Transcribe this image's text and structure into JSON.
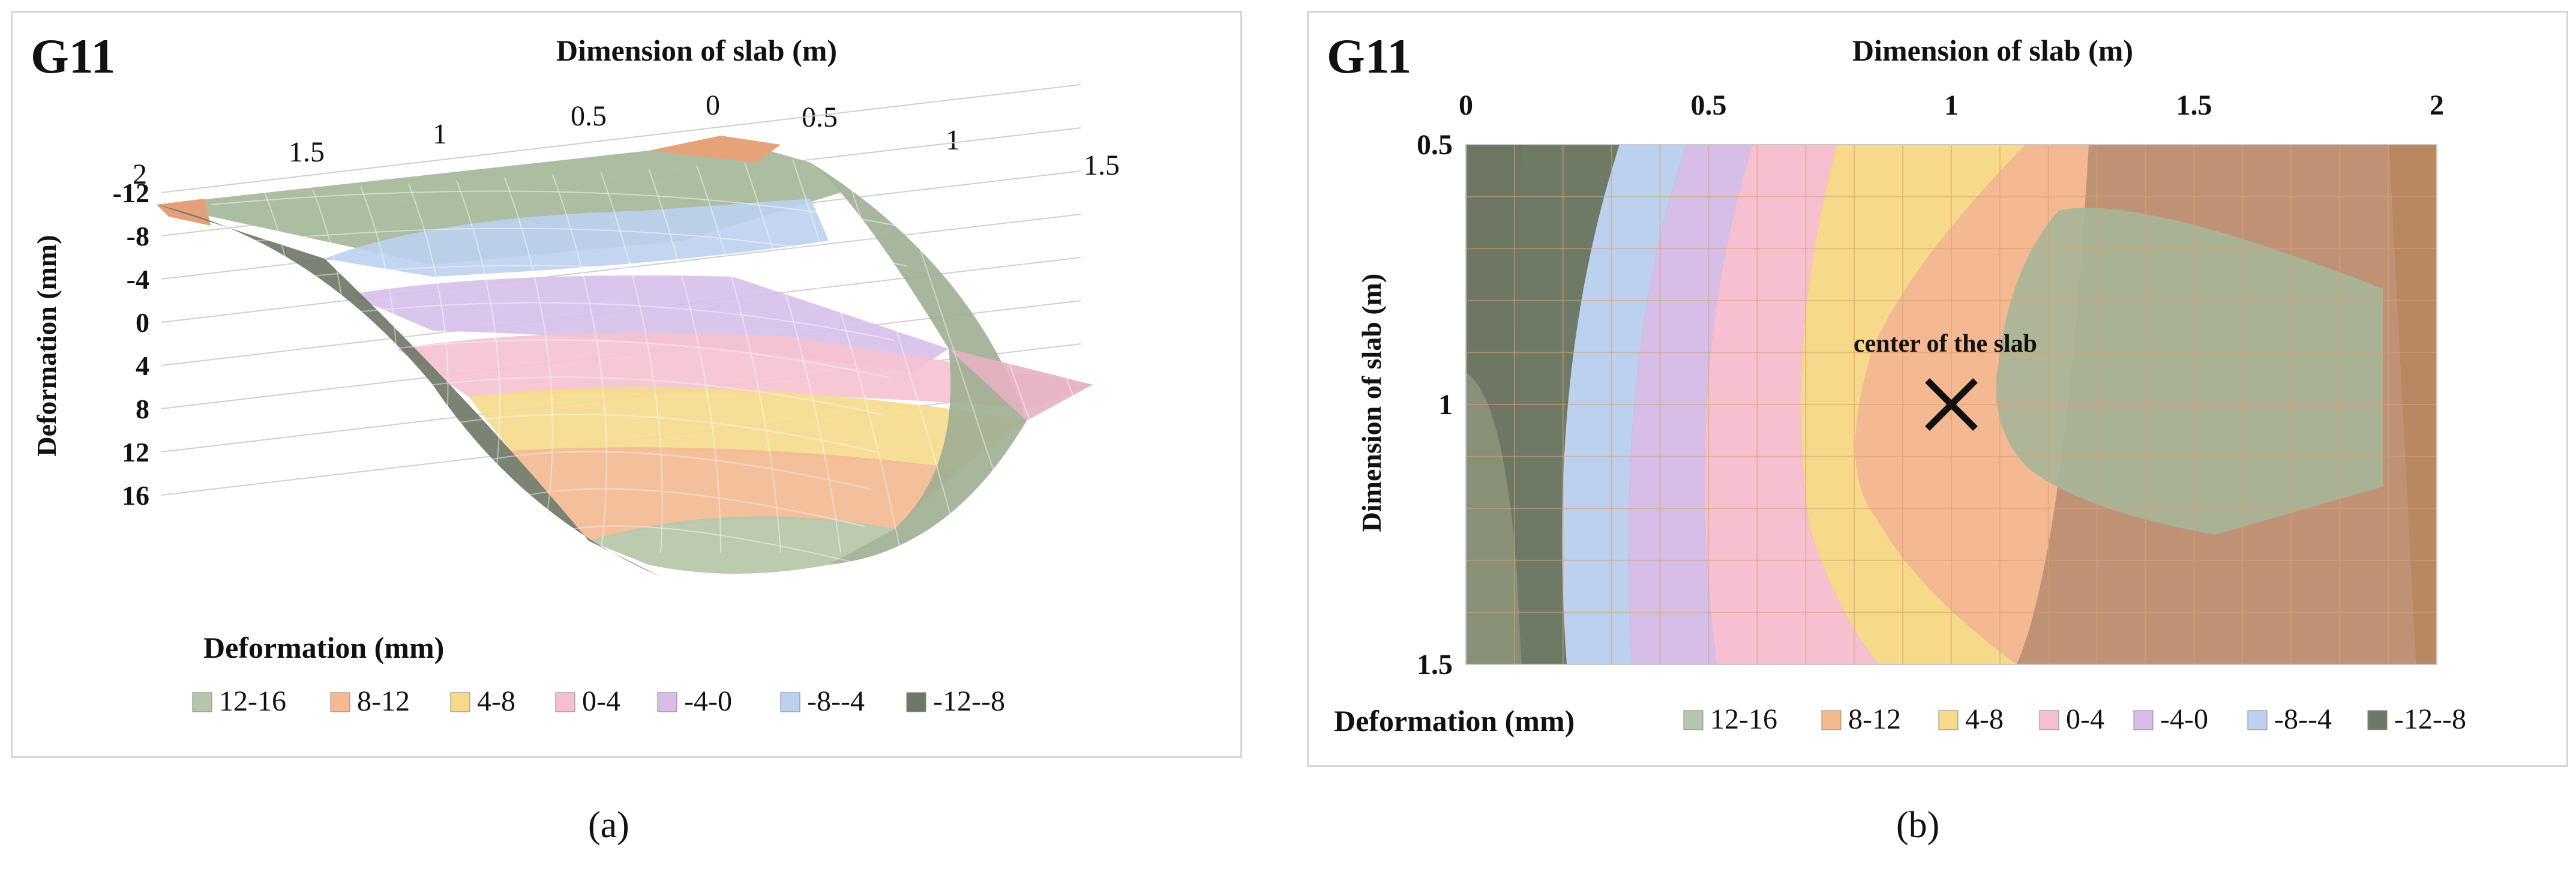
{
  "legend_colors": {
    "12-16": "#b7c5ac",
    "8-12": "#f4b98f",
    "4-8": "#f7d98a",
    "0-4": "#f5bfcf",
    "-4-0": "#d7bde8",
    "-8--4": "#bdd0ef",
    "-12--8": "#6f7766",
    "mesh": "#cf7a3a"
  },
  "chart_data": [
    {
      "id": "a",
      "type": "surface",
      "panel_label": "G11",
      "title": "",
      "x_axis_label": "Dimension of slab (m)",
      "x_ticks_left": [
        "2",
        "1.5",
        "1",
        "0.5",
        "0"
      ],
      "x_ticks_right": [
        "0.5",
        "1",
        "1.5"
      ],
      "z_axis_label": "Deformation (mm)",
      "z_ticks": [
        "-12",
        "-8",
        "-4",
        "0",
        "4",
        "8",
        "12",
        "16"
      ],
      "z_range": [
        -12,
        16
      ],
      "legend_title": "Deformation (mm)",
      "legend": [
        "12-16",
        "8-12",
        "4-8",
        "0-4",
        "-4-0",
        "-8--4",
        "-12--8"
      ],
      "caption": "(a)"
    },
    {
      "id": "b",
      "type": "contour",
      "panel_label": "G11",
      "x_axis_label": "Dimension of slab (m)",
      "x_ticks": [
        "0",
        "0.5",
        "1",
        "1.5",
        "2"
      ],
      "x_range": [
        0,
        2
      ],
      "y_axis_label": "Dimension of slab (m)",
      "y_ticks": [
        "0.5",
        "1",
        "1.5"
      ],
      "y_range": [
        0.5,
        1.5
      ],
      "annotation": {
        "text": "center of the slab",
        "x": 1.0,
        "y": 1.0
      },
      "legend_title": "Deformation (mm)",
      "legend": [
        "12-16",
        "8-12",
        "4-8",
        "0-4",
        "-4-0",
        "-8--4",
        "-12--8"
      ],
      "caption": "(b)"
    }
  ]
}
